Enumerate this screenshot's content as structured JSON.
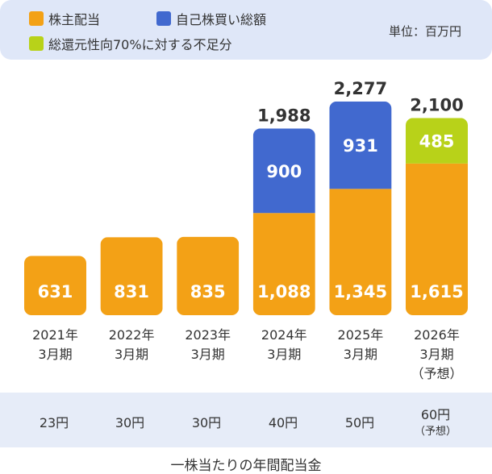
{
  "unit_label": "単位：百万円",
  "legend": [
    {
      "label": "株主配当",
      "color": "#f3a116"
    },
    {
      "label": "自己株買い総額",
      "color": "#4169cf"
    },
    {
      "label": "総還元性向70%に対する不足分",
      "color": "#b8d219"
    }
  ],
  "chart_data": {
    "type": "bar",
    "stacked": true,
    "categories": [
      [
        "2021年",
        "3月期"
      ],
      [
        "2022年",
        "3月期"
      ],
      [
        "2023年",
        "3月期"
      ],
      [
        "2024年",
        "3月期"
      ],
      [
        "2025年",
        "3月期"
      ],
      [
        "2026年",
        "3月期",
        "（予想）"
      ]
    ],
    "series": [
      {
        "name": "株主配当",
        "color": "#f3a116",
        "values": [
          631,
          831,
          835,
          1088,
          1345,
          1615
        ],
        "labels": [
          "631",
          "831",
          "835",
          "1,088",
          "1,345",
          "1,615"
        ]
      },
      {
        "name": "自己株買い総額",
        "color": "#4169cf",
        "values": [
          0,
          0,
          0,
          900,
          931,
          0
        ],
        "labels": [
          "",
          "",
          "",
          "900",
          "931",
          ""
        ]
      },
      {
        "name": "総還元性向70%に対する不足分",
        "color": "#b8d219",
        "values": [
          0,
          0,
          0,
          0,
          0,
          485
        ],
        "labels": [
          "",
          "",
          "",
          "",
          "",
          "485"
        ]
      }
    ],
    "totals": [
      "",
      "",
      "",
      "1,988",
      "2,277",
      "2,100"
    ],
    "ylim": [
      0,
      2400
    ]
  },
  "dividends_per_share": {
    "values": [
      {
        "amount": "23円",
        "note": ""
      },
      {
        "amount": "30円",
        "note": ""
      },
      {
        "amount": "30円",
        "note": ""
      },
      {
        "amount": "40円",
        "note": ""
      },
      {
        "amount": "50円",
        "note": ""
      },
      {
        "amount": "60円",
        "note": "（予想）"
      }
    ],
    "caption": "一株当たりの年間配当金"
  }
}
